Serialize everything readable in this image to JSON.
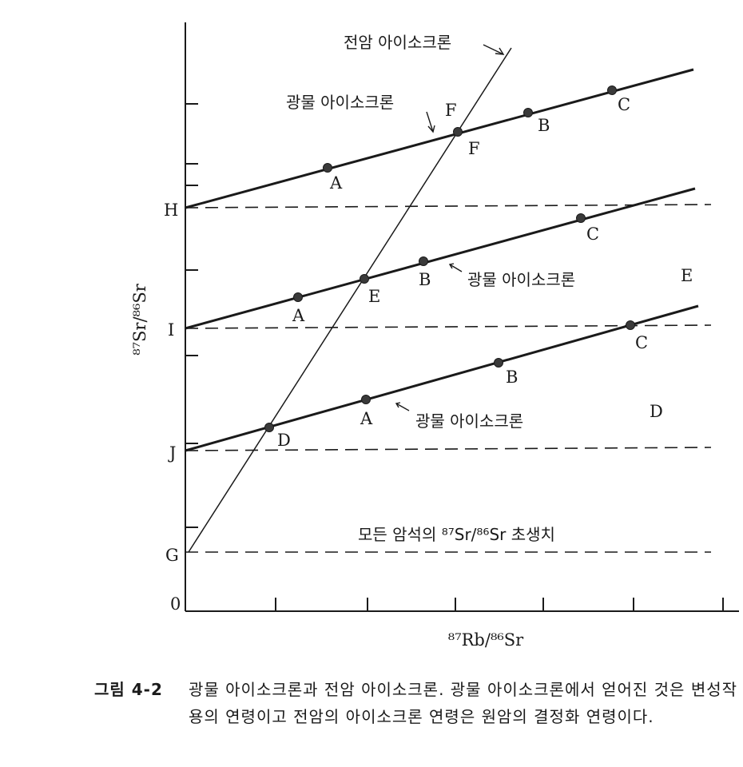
{
  "axes": {
    "y_label": "⁸⁷Sr/⁸⁶Sr",
    "x_label": "⁸⁷Rb/⁸⁶Sr",
    "origin": "0",
    "y_points": {
      "H": "H",
      "I": "I",
      "J": "J",
      "G": "G"
    }
  },
  "whole_rock_isochron": {
    "label": "전암 아이소크론"
  },
  "mineral_isochrons": [
    {
      "label": "광물 아이소크론",
      "points": [
        "A",
        "F",
        "B",
        "C"
      ]
    },
    {
      "label": "광물 아이소크론",
      "points": [
        "A",
        "E",
        "B",
        "C"
      ]
    },
    {
      "label": "광물 아이소크론",
      "points": [
        "D",
        "A",
        "B",
        "C"
      ]
    }
  ],
  "rock_labels": {
    "F_upper": "F",
    "F_lower": "F",
    "E_right": "E",
    "D_right": "D"
  },
  "initial_ratio_label": "모든 암석의 ⁸⁷Sr/⁸⁶Sr 초생치",
  "caption": {
    "number": "그림 4-2",
    "text": "광물 아이소크론과 전암 아이소크론. 광물 아이소크론에서 얻어진 것은 변성작용의 연령이고 전암의 아이소크론 연령은 원암의 결정화 연령이다."
  }
}
